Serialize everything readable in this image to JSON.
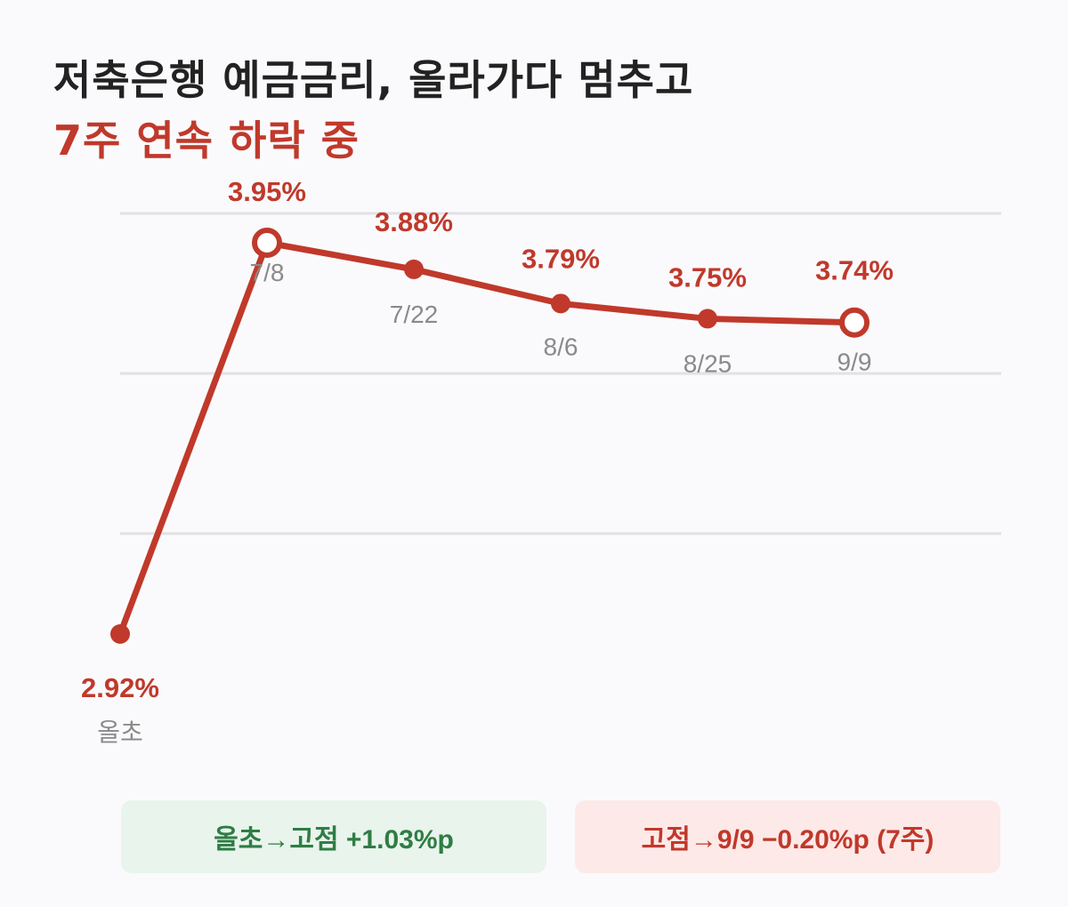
{
  "title": "저축은행 예금금리, 올라가다 멈추고",
  "subtitle": "7주 연속 하락 중",
  "colors": {
    "line": "#c0392b",
    "grid": "#e2e2e6",
    "up_bg": "#e9f4ec",
    "up_text": "#2e7d44",
    "down_bg": "#fde9e7",
    "down_text": "#c0392b"
  },
  "chart_data": {
    "type": "line",
    "x": [
      "올초",
      "7/8",
      "7/22",
      "8/6",
      "8/25",
      "9/9"
    ],
    "series": [
      {
        "values": [
          2.92,
          3.95,
          3.88,
          3.79,
          3.75,
          3.74
        ]
      }
    ],
    "data_labels": [
      "2.92%",
      "3.95%",
      "3.88%",
      "3.79%",
      "3.75%",
      "3.74%"
    ],
    "highlighted_points": [
      "7/8",
      "9/9"
    ],
    "grid": true
  },
  "summary": {
    "rise": "올초→고점 +1.03%p",
    "fall": "고점→9/9 −0.20%p (7주)"
  }
}
